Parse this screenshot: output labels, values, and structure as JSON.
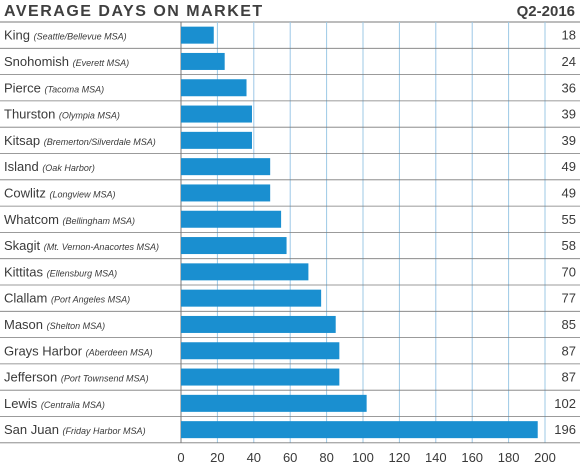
{
  "header": {
    "title": "AVERAGE DAYS ON MARKET",
    "period": "Q2-2016"
  },
  "colors": {
    "bar": "#1a8fd0",
    "grid": "#9cc8e6",
    "rule": "#7a7a7a",
    "text": "#3a3a3a"
  },
  "chart_data": {
    "type": "bar",
    "orientation": "horizontal",
    "title": "AVERAGE DAYS ON MARKET",
    "subtitle": "Q2-2016",
    "xlabel": "",
    "ylabel": "",
    "xlim": [
      0,
      200
    ],
    "ticks": [
      0,
      20,
      40,
      60,
      80,
      100,
      120,
      140,
      160,
      180,
      200
    ],
    "grid": true,
    "categories": [
      {
        "name": "King",
        "sub": "(Seattle/Bellevue MSA)"
      },
      {
        "name": "Snohomish",
        "sub": "(Everett MSA)"
      },
      {
        "name": "Pierce",
        "sub": "(Tacoma MSA)"
      },
      {
        "name": "Thurston",
        "sub": "(Olympia MSA)"
      },
      {
        "name": "Kitsap",
        "sub": "(Bremerton/Silverdale MSA)"
      },
      {
        "name": "Island",
        "sub": "(Oak Harbor)"
      },
      {
        "name": "Cowlitz",
        "sub": "(Longview MSA)"
      },
      {
        "name": "Whatcom",
        "sub": "(Bellingham MSA)"
      },
      {
        "name": "Skagit",
        "sub": "(Mt. Vernon-Anacortes MSA)"
      },
      {
        "name": "Kittitas",
        "sub": "(Ellensburg MSA)"
      },
      {
        "name": "Clallam",
        "sub": "(Port Angeles MSA)"
      },
      {
        "name": "Mason",
        "sub": "(Shelton MSA)"
      },
      {
        "name": "Grays Harbor",
        "sub": "(Aberdeen MSA)"
      },
      {
        "name": "Jefferson",
        "sub": "(Port Townsend MSA)"
      },
      {
        "name": "Lewis",
        "sub": "(Centralia MSA)"
      },
      {
        "name": "San Juan",
        "sub": "(Friday Harbor MSA)"
      }
    ],
    "values": [
      18,
      24,
      36,
      39,
      39,
      49,
      49,
      55,
      58,
      70,
      77,
      85,
      87,
      87,
      102,
      196
    ]
  }
}
